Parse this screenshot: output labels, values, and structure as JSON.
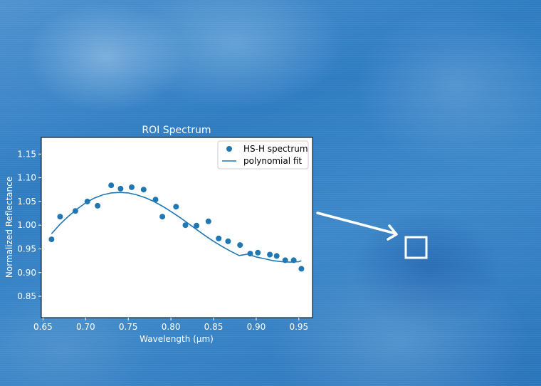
{
  "chart_data": {
    "type": "scatter",
    "title": "ROI Spectrum",
    "xlabel": "Wavelength (μm)",
    "ylabel": "Normalized Reflectance",
    "xlim": [
      0.648,
      0.966
    ],
    "ylim": [
      0.805,
      1.185
    ],
    "x_ticks": [
      0.65,
      0.7,
      0.75,
      0.8,
      0.85,
      0.9,
      0.95
    ],
    "x_tick_labels": [
      "0.65",
      "0.70",
      "0.75",
      "0.80",
      "0.85",
      "0.90",
      "0.95"
    ],
    "y_ticks": [
      0.85,
      0.9,
      0.95,
      1.0,
      1.05,
      1.1,
      1.15
    ],
    "y_tick_labels": [
      "0.85",
      "0.90",
      "0.95",
      "1.00",
      "1.05",
      "1.10",
      "1.15"
    ],
    "grid": false,
    "legend_position": "top-right",
    "series": [
      {
        "name": "HS-H spectrum",
        "kind": "scatter",
        "color": "#1f77b4",
        "x": [
          0.66,
          0.67,
          0.688,
          0.702,
          0.714,
          0.73,
          0.741,
          0.754,
          0.768,
          0.782,
          0.79,
          0.806,
          0.817,
          0.83,
          0.844,
          0.856,
          0.867,
          0.881,
          0.893,
          0.902,
          0.916,
          0.924,
          0.934,
          0.944,
          0.953
        ],
        "y": [
          0.97,
          1.018,
          1.03,
          1.05,
          1.041,
          1.084,
          1.077,
          1.08,
          1.075,
          1.054,
          1.018,
          1.039,
          1.0,
          0.999,
          1.008,
          0.972,
          0.966,
          0.958,
          0.94,
          0.942,
          0.938,
          0.935,
          0.926,
          0.926,
          0.908
        ]
      },
      {
        "name": "polynomial fit",
        "kind": "line",
        "color": "#1f77b4",
        "x": [
          0.66,
          0.67,
          0.68,
          0.69,
          0.7,
          0.71,
          0.72,
          0.73,
          0.74,
          0.75,
          0.76,
          0.77,
          0.78,
          0.79,
          0.8,
          0.81,
          0.82,
          0.83,
          0.84,
          0.85,
          0.86,
          0.87,
          0.88,
          0.89,
          0.9,
          0.91,
          0.92,
          0.93,
          0.94,
          0.95,
          0.953
        ],
        "y": [
          0.982,
          1.002,
          1.019,
          1.034,
          1.047,
          1.057,
          1.064,
          1.068,
          1.069,
          1.068,
          1.064,
          1.058,
          1.05,
          1.04,
          1.029,
          1.017,
          1.004,
          0.991,
          0.978,
          0.966,
          0.955,
          0.945,
          0.936,
          0.939,
          0.933,
          0.929,
          0.925,
          0.923,
          0.922,
          0.923,
          0.925
        ]
      }
    ]
  },
  "annotation": {
    "arrow_color": "#ffffff",
    "roi_box_color": "#ffffff"
  }
}
